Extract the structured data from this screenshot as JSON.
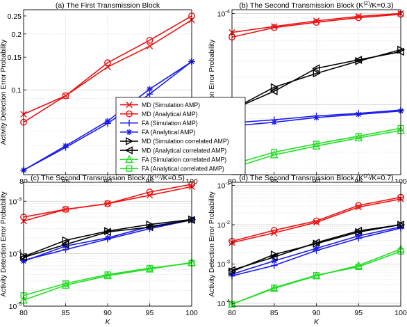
{
  "figure": {
    "ylabel": "Activity Detection Error Probability",
    "xlabel": "K"
  },
  "legend": {
    "placement": "center (overlaps panels a and b)",
    "entries": [
      {
        "label": "MD (Simulation AMP)",
        "color": "#ee1111",
        "marker": "x"
      },
      {
        "label": "MD (Analytical AMP)",
        "color": "#ee1111",
        "marker": "circle"
      },
      {
        "label": "FA (Simulation AMP)",
        "color": "#1a1aee",
        "marker": "plus"
      },
      {
        "label": "FA (Analytical AMP)",
        "color": "#1a1aee",
        "marker": "star"
      },
      {
        "label": "MD (Simulation correlated AMP)",
        "color": "#000000",
        "marker": "triangle-right"
      },
      {
        "label": "MD (Analytical correlated AMP)",
        "color": "#000000",
        "marker": "triangle-left"
      },
      {
        "label": "FA (Simulation correlated AMP)",
        "color": "#22dd22",
        "marker": "triangle-up"
      },
      {
        "label": "FA (Analytical correlated AMP)",
        "color": "#22dd22",
        "marker": "square"
      }
    ]
  },
  "chart_data": [
    {
      "type": "line",
      "title": "(a) The First Transmission Block",
      "xlabel": "K",
      "ylabel": "Activity Detection Error Probability",
      "yscale": "log",
      "xlim": [
        80,
        100
      ],
      "ylim": [
        0.035,
        0.27
      ],
      "x": [
        80,
        85,
        90,
        95,
        100
      ],
      "xticks": [
        "80",
        "85",
        "90",
        "95",
        "100"
      ],
      "yticks": [
        {
          "value": 0.1,
          "label": "0.1"
        },
        {
          "value": 0.15,
          "label": "0.15"
        },
        {
          "value": 0.2,
          "label": "0.2"
        },
        {
          "value": 0.25,
          "label": "0.25"
        }
      ],
      "grid": true,
      "series": [
        {
          "name": "MD (Simulation AMP)",
          "values": [
            0.074,
            0.093,
            0.133,
            0.172,
            0.238
          ]
        },
        {
          "name": "MD (Analytical AMP)",
          "values": [
            0.067,
            0.093,
            0.14,
            0.185,
            0.25
          ]
        },
        {
          "name": "FA (Simulation AMP)",
          "values": [
            0.037,
            0.049,
            0.066,
            0.095,
            0.142
          ]
        },
        {
          "name": "FA (Analytical AMP)",
          "values": [
            0.037,
            0.05,
            0.068,
            0.101,
            0.142
          ]
        }
      ]
    },
    {
      "type": "line",
      "title": "(b) The Second Transmission Block (K(2)/K=0.3)",
      "xlabel": "K",
      "ylabel": "Activity Detection Error Probability",
      "yscale": "log",
      "xlim": [
        80,
        100
      ],
      "ylim": [
        1.7e-06,
        0.00011
      ],
      "x": [
        80,
        85,
        90,
        95,
        100
      ],
      "xticks": [
        "80",
        "85",
        "90",
        "95",
        "100"
      ],
      "yticks": [
        {
          "value": 1e-05,
          "label": "10",
          "exp": "-5"
        },
        {
          "value": 0.0001,
          "label": "10",
          "exp": "-4"
        }
      ],
      "grid": true,
      "series": [
        {
          "name": "MD (Simulation AMP)",
          "values": [
            6.2e-05,
            7.2e-05,
            8.3e-05,
            9.3e-05,
            0.0001
          ]
        },
        {
          "name": "MD (Analytical AMP)",
          "values": [
            5.5e-05,
            7e-05,
            8e-05,
            9e-05,
            9.8e-05
          ]
        },
        {
          "name": "FA (Simulation AMP)",
          "values": [
            6.3e-06,
            6.8e-06,
            7.5e-06,
            8e-06,
            8.7e-06
          ]
        },
        {
          "name": "FA (Analytical AMP)",
          "values": [
            5.8e-06,
            6.4e-06,
            7.2e-06,
            7.8e-06,
            8.5e-06
          ]
        },
        {
          "name": "MD (Simulation correlated AMP)",
          "values": [
            8.8e-06,
            1.55e-05,
            2.2e-05,
            3e-05,
            4e-05
          ]
        },
        {
          "name": "MD (Analytical correlated AMP)",
          "values": [
            8.8e-06,
            1.4e-05,
            2.5e-05,
            3.1e-05,
            3.8e-05
          ]
        },
        {
          "name": "FA (Simulation correlated AMP)",
          "values": [
            2e-06,
            2.8e-06,
            3.5e-06,
            4.3e-06,
            5.2e-06
          ]
        },
        {
          "name": "FA (Analytical correlated AMP)",
          "values": [
            2.2e-06,
            3e-06,
            3.7e-06,
            4.5e-06,
            5.5e-06
          ]
        }
      ]
    },
    {
      "type": "line",
      "title": "(c) The Second Transmission Block (K(2)/K=0.5)",
      "xlabel": "K",
      "ylabel": "Activity Detection Error Probability",
      "yscale": "log",
      "xlim": [
        80,
        100
      ],
      "ylim": [
        1e-05,
        0.0023
      ],
      "x": [
        80,
        85,
        90,
        95,
        100
      ],
      "xticks": [
        "80",
        "85",
        "90",
        "95",
        "100"
      ],
      "yticks": [
        {
          "value": 1e-05,
          "label": "10",
          "exp": "-5"
        },
        {
          "value": 0.0001,
          "label": "10",
          "exp": "-4"
        },
        {
          "value": 0.001,
          "label": "10",
          "exp": "-3"
        }
      ],
      "grid": true,
      "series": [
        {
          "name": "MD (Simulation AMP)",
          "values": [
            0.00042,
            0.0007,
            0.0009,
            0.0013,
            0.0019
          ]
        },
        {
          "name": "MD (Analytical AMP)",
          "values": [
            0.0005,
            0.0007,
            0.0009,
            0.0015,
            0.0021
          ]
        },
        {
          "name": "FA (Simulation AMP)",
          "values": [
            7.5e-05,
            0.00012,
            0.00019,
            0.0003,
            0.00044
          ]
        },
        {
          "name": "FA (Analytical AMP)",
          "values": [
            7.2e-05,
            0.00014,
            0.0002,
            0.00033,
            0.00044
          ]
        },
        {
          "name": "MD (Simulation correlated AMP)",
          "values": [
            8.8e-05,
            0.00018,
            0.00027,
            0.00036,
            0.00045
          ]
        },
        {
          "name": "MD (Analytical correlated AMP)",
          "values": [
            8.5e-05,
            0.00015,
            0.00026,
            0.00032,
            0.00044
          ]
        },
        {
          "name": "FA (Simulation correlated AMP)",
          "values": [
            1.3e-05,
            2.5e-05,
            3.8e-05,
            5.1e-05,
            6.8e-05
          ]
        },
        {
          "name": "FA (Analytical correlated AMP)",
          "values": [
            1.6e-05,
            2.7e-05,
            4e-05,
            5.3e-05,
            6.6e-05
          ]
        }
      ]
    },
    {
      "type": "line",
      "title": "(d) The Second Transmission Block (K(2)/K=0.7)",
      "xlabel": "K",
      "ylabel": "Activity Detection Error Probability",
      "yscale": "log",
      "xlim": [
        80,
        100
      ],
      "ylim": [
        8.5e-05,
        0.12
      ],
      "x": [
        80,
        85,
        90,
        95,
        100
      ],
      "xticks": [
        "80",
        "85",
        "90",
        "95",
        "100"
      ],
      "yticks": [
        {
          "value": 0.0001,
          "label": "10",
          "exp": "-4"
        },
        {
          "value": 0.001,
          "label": "10",
          "exp": "-3"
        },
        {
          "value": 0.01,
          "label": "10",
          "exp": "-2"
        },
        {
          "value": 0.1,
          "label": "10",
          "exp": "-1"
        }
      ],
      "grid": true,
      "series": [
        {
          "name": "MD (Simulation AMP)",
          "values": [
            0.0035,
            0.0062,
            0.0115,
            0.028,
            0.045
          ]
        },
        {
          "name": "MD (Analytical AMP)",
          "values": [
            0.0038,
            0.0072,
            0.0125,
            0.031,
            0.05
          ]
        },
        {
          "name": "FA (Simulation AMP)",
          "values": [
            0.0005,
            0.00092,
            0.0022,
            0.0045,
            0.0082
          ]
        },
        {
          "name": "FA (Analytical AMP)",
          "values": [
            0.00055,
            0.0012,
            0.0025,
            0.0052,
            0.0088
          ]
        },
        {
          "name": "MD (Simulation correlated AMP)",
          "values": [
            0.00065,
            0.00175,
            0.0033,
            0.0065,
            0.01
          ]
        },
        {
          "name": "MD (Analytical correlated AMP)",
          "values": [
            0.0007,
            0.0015,
            0.0035,
            0.007,
            0.01
          ]
        },
        {
          "name": "FA (Simulation correlated AMP)",
          "values": [
            9.5e-05,
            0.00024,
            0.0005,
            0.00092,
            0.0024
          ]
        },
        {
          "name": "FA (Analytical correlated AMP)",
          "values": [
            9.5e-05,
            0.00025,
            0.00052,
            0.00085,
            0.0021
          ]
        }
      ]
    }
  ]
}
